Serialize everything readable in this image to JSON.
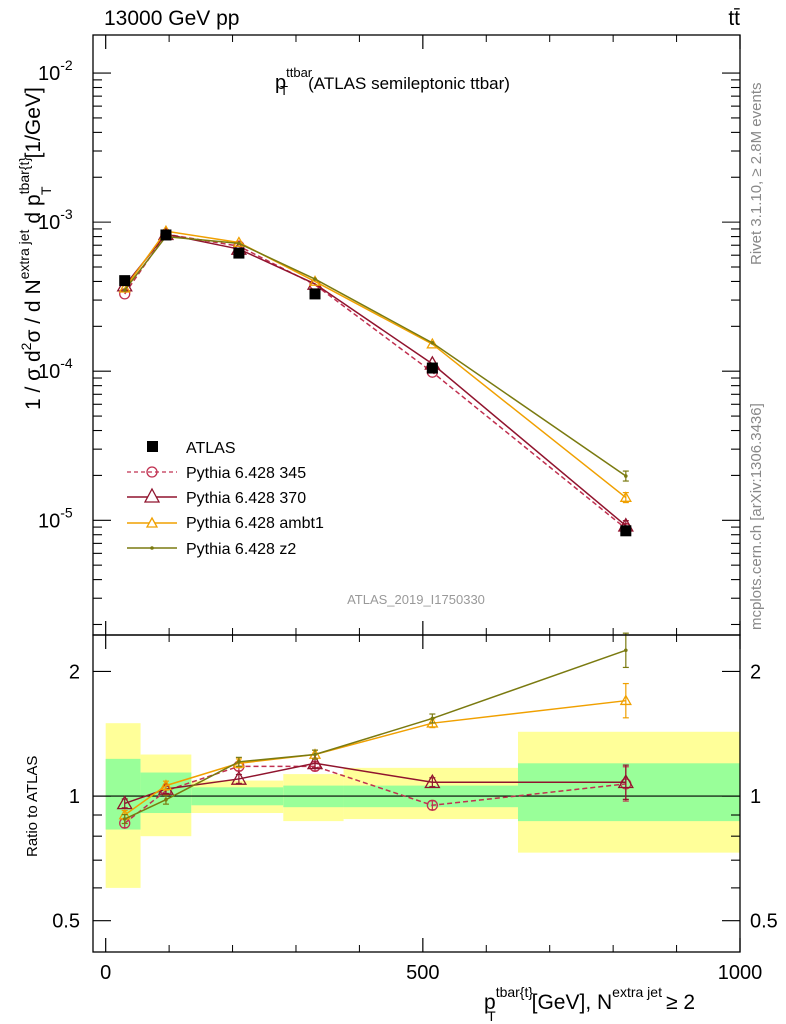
{
  "header": {
    "left": "13000 GeV pp",
    "right": "tt̄"
  },
  "side_text": {
    "rivet": "Rivet 3.1.10, ≥ 2.8M events",
    "mcplots": "mcplots.cern.ch [arXiv:1306.3436]"
  },
  "watermark": "ATLAS_2019_I1750330",
  "chart_data": [
    {
      "type": "line",
      "title": {
        "main": "p",
        "sup": "ttbar",
        "sub": "T",
        "rest": "(ATLAS semileptonic ttbar)"
      },
      "ylabel": {
        "lead": "1 / σ d",
        "sup_2": "2",
        "mid": "σ / d N",
        "sup_extra": "extra jet",
        "mid2": "d p",
        "sup_tbar": "tbar{t}",
        "sub_T": "T",
        "unit": "[1/GeV]"
      },
      "x_range": [
        -20,
        1000
      ],
      "y_scale": "log",
      "y_range": [
        1.7e-06,
        0.018
      ],
      "y_ticks": [
        {
          "value": 0.01,
          "base": "10",
          "exp": "-2"
        },
        {
          "value": 0.001,
          "base": "10",
          "exp": "-3"
        },
        {
          "value": 0.0001,
          "base": "10",
          "exp": "-4"
        },
        {
          "value": 1e-05,
          "base": "10",
          "exp": "-5"
        }
      ],
      "legend_position": "bottom-left",
      "data": {
        "name": "ATLAS",
        "x": [
          30,
          95,
          210,
          330,
          515,
          820
        ],
        "y": [
          0.000405,
          0.00082,
          0.00062,
          0.00033,
          0.000105,
          8.5e-06
        ]
      },
      "series": [
        {
          "name": "Pythia 6.428 345",
          "color": "#c03050",
          "style": "dashed",
          "marker": "circle",
          "x": [
            30,
            95,
            210,
            330,
            515,
            820
          ],
          "y": [
            0.00033,
            0.00083,
            0.00069,
            0.00038,
            9.85e-05,
            8.8e-06
          ]
        },
        {
          "name": "Pythia 6.428 370",
          "color": "#90142e",
          "style": "solid",
          "marker": "triangle",
          "x": [
            30,
            95,
            210,
            330,
            515,
            820
          ],
          "y": [
            0.000375,
            0.00083,
            0.00066,
            0.000385,
            0.000112,
            9.2e-06
          ]
        },
        {
          "name": "Pythia 6.428 ambt1",
          "color": "#f0a000",
          "style": "solid",
          "marker": "triangle",
          "x": [
            30,
            95,
            210,
            330,
            515,
            820
          ],
          "y": [
            0.00036,
            0.00087,
            0.00073,
            0.0004,
            0.000152,
            1.42e-05
          ]
        },
        {
          "name": "Pythia 6.428 z2",
          "color": "#7a7a10",
          "style": "solid",
          "marker": "dot",
          "x": [
            30,
            95,
            210,
            330,
            515,
            820
          ],
          "y": [
            0.00035,
            0.0008,
            0.00072,
            0.000415,
            0.000155,
            1.98e-05
          ]
        }
      ]
    },
    {
      "type": "line",
      "ylabel": "Ratio to ATLAS",
      "xlabel": {
        "lead": "p",
        "sup": "tbar{t}",
        "sub": "T",
        "mid": "[GeV], N",
        "sup2": "extra jet",
        "tail": "≥ 2"
      },
      "x_range": [
        -20,
        1000
      ],
      "x_ticks": [
        0,
        500,
        1000
      ],
      "y_scale": "log",
      "y_range": [
        0.42,
        2.45
      ],
      "y_ticks": [
        {
          "value": 0.5,
          "label": "0.5"
        },
        {
          "value": 1,
          "label": "1"
        },
        {
          "value": 2,
          "label": "2"
        }
      ],
      "bands": [
        {
          "x0": 0,
          "x1": 55,
          "outer": [
            0.6,
            1.5
          ],
          "inner": [
            0.83,
            1.23
          ]
        },
        {
          "x0": 55,
          "x1": 135,
          "outer": [
            0.8,
            1.26
          ],
          "inner": [
            0.91,
            1.14
          ]
        },
        {
          "x0": 135,
          "x1": 280,
          "outer": [
            0.91,
            1.09
          ],
          "inner": [
            0.95,
            1.05
          ]
        },
        {
          "x0": 280,
          "x1": 375,
          "outer": [
            0.87,
            1.13
          ],
          "inner": [
            0.94,
            1.06
          ]
        },
        {
          "x0": 375,
          "x1": 650,
          "outer": [
            0.88,
            1.17
          ],
          "inner": [
            0.94,
            1.06
          ]
        },
        {
          "x0": 650,
          "x1": 1000,
          "outer": [
            0.73,
            1.43
          ],
          "inner": [
            0.87,
            1.2
          ]
        }
      ],
      "series": [
        {
          "name": "Pythia 6.428 345",
          "x": [
            30,
            95,
            210,
            330,
            515,
            820
          ],
          "y": [
            0.86,
            1.03,
            1.18,
            1.18,
            0.95,
            1.07
          ]
        },
        {
          "name": "Pythia 6.428 370",
          "x": [
            30,
            95,
            210,
            330,
            515,
            820
          ],
          "y": [
            0.96,
            1.04,
            1.1,
            1.2,
            1.08,
            1.08
          ]
        },
        {
          "name": "Pythia 6.428 ambt1",
          "x": [
            30,
            95,
            210,
            330,
            515,
            820
          ],
          "y": [
            0.9,
            1.06,
            1.2,
            1.26,
            1.5,
            1.7
          ]
        },
        {
          "name": "Pythia 6.428 z2",
          "x": [
            30,
            95,
            210,
            330,
            515,
            820
          ],
          "y": [
            0.88,
            0.98,
            1.21,
            1.26,
            1.54,
            2.25
          ]
        }
      ]
    }
  ]
}
